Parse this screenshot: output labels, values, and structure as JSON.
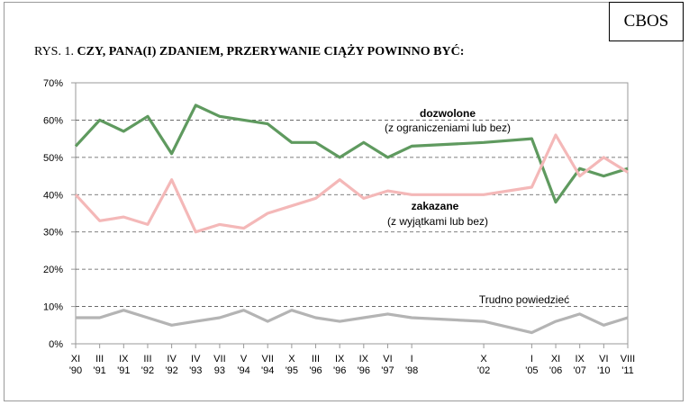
{
  "header": {
    "org": "CBOS"
  },
  "title": {
    "prefix": "RYS. 1. ",
    "main": "CZY, PANA(I) ZDANIEM, PRZERYWANIE CIĄŻY POWINNO BYĆ:"
  },
  "chart_data": {
    "type": "line",
    "title": "CZY, PANA(I) ZDANIEM, PRZERYWANIE CIĄŻY POWINNO BYĆ:",
    "ylim": [
      0,
      70
    ],
    "yticks": [
      "0%",
      "10%",
      "20%",
      "30%",
      "40%",
      "50%",
      "60%",
      "70%"
    ],
    "grid": true,
    "categories": [
      [
        "XI",
        "'90"
      ],
      [
        "III",
        "'91"
      ],
      [
        "IX",
        "'91"
      ],
      [
        "III",
        "'92"
      ],
      [
        "IV",
        "'92"
      ],
      [
        "IV",
        "'93"
      ],
      [
        "VII",
        "93"
      ],
      [
        "V",
        "'94"
      ],
      [
        "VII",
        "'94"
      ],
      [
        "X",
        "'95"
      ],
      [
        "III",
        "'96"
      ],
      [
        "IX",
        "'96"
      ],
      [
        "IX",
        "'96"
      ],
      [
        "VI",
        "'97"
      ],
      [
        "I",
        "'98"
      ],
      [
        "X",
        "'02"
      ],
      [
        "I",
        "'05"
      ],
      [
        "XI",
        "'06"
      ],
      [
        "IX",
        "'07"
      ],
      [
        "VI",
        "'10"
      ],
      [
        "VIII",
        "'11"
      ]
    ],
    "category_positions": [
      0,
      1,
      2,
      3,
      4,
      5,
      6,
      7,
      8,
      9,
      10,
      11,
      12,
      13,
      14,
      17,
      19,
      20,
      21,
      22,
      23
    ],
    "series": [
      {
        "name": "dozwolone",
        "name2": "(z ograniczeniami lub bez)",
        "color": "#5f9a5f",
        "values": [
          53,
          60,
          57,
          61,
          51,
          64,
          61,
          60,
          59,
          54,
          54,
          50,
          54,
          50,
          53,
          54,
          55,
          38,
          47,
          45,
          47
        ]
      },
      {
        "name": "zakazane",
        "name2": "(z  wyjątkami lub bez)",
        "color": "#f4b8b8",
        "values": [
          40,
          33,
          34,
          32,
          44,
          30,
          32,
          31,
          35,
          37,
          39,
          44,
          39,
          41,
          40,
          40,
          42,
          56,
          45,
          50,
          46
        ]
      },
      {
        "name": "Trudno powiedzieć",
        "color": "#b4b4b4",
        "values": [
          7,
          7,
          9,
          7,
          5,
          6,
          7,
          9,
          6,
          9,
          7,
          6,
          7,
          8,
          7,
          6,
          3,
          6,
          8,
          5,
          7
        ]
      }
    ]
  }
}
